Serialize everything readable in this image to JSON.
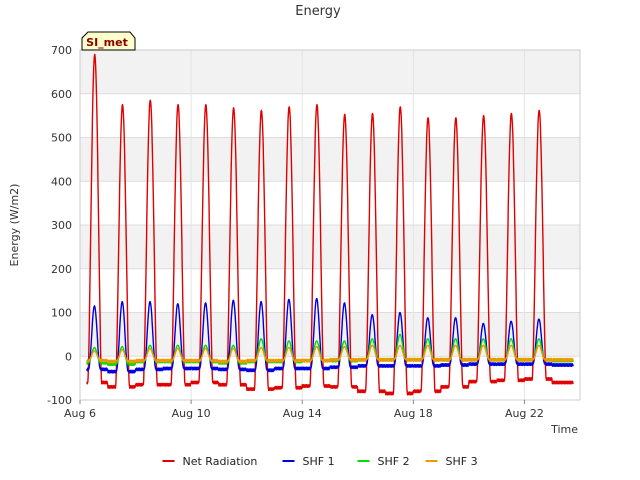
{
  "chart_data": {
    "type": "line",
    "title": "Energy",
    "xlabel": "Time",
    "ylabel": "Energy (W/m2)",
    "badge": "SI_met",
    "ylim": [
      -100,
      700
    ],
    "yticks": [
      -100,
      0,
      100,
      200,
      300,
      400,
      500,
      600,
      700
    ],
    "xlim": [
      "2023-08-06",
      "2023-08-24"
    ],
    "xticks": [
      {
        "date": "2023-08-06",
        "label": "Aug 6"
      },
      {
        "date": "2023-08-10",
        "label": "Aug 10"
      },
      {
        "date": "2023-08-14",
        "label": "Aug 14"
      },
      {
        "date": "2023-08-18",
        "label": "Aug 18"
      },
      {
        "date": "2023-08-22",
        "label": "Aug 22"
      }
    ],
    "grid": true,
    "legend_position": "bottom",
    "series_style": "diurnal",
    "days": [
      "2023-08-06",
      "2023-08-07",
      "2023-08-08",
      "2023-08-09",
      "2023-08-10",
      "2023-08-11",
      "2023-08-12",
      "2023-08-13",
      "2023-08-14",
      "2023-08-15",
      "2023-08-16",
      "2023-08-17",
      "2023-08-18",
      "2023-08-19",
      "2023-08-20",
      "2023-08-21",
      "2023-08-22",
      "2023-08-23"
    ],
    "series": [
      {
        "name": "Net Radiation",
        "color": "#e00000",
        "daily_peak": [
          690,
          575,
          585,
          575,
          575,
          568,
          562,
          570,
          575,
          553,
          555,
          570,
          545,
          545,
          550,
          555,
          562,
          0
        ],
        "night_value": [
          -60,
          -70,
          -65,
          -65,
          -60,
          -65,
          -75,
          -72,
          -68,
          -70,
          -80,
          -85,
          -80,
          -70,
          -58,
          -55,
          -52,
          -60
        ]
      },
      {
        "name": "SHF 1",
        "color": "#0000dd",
        "daily_peak": [
          115,
          125,
          125,
          120,
          122,
          128,
          125,
          130,
          132,
          122,
          95,
          100,
          88,
          88,
          75,
          80,
          85,
          0
        ],
        "night_value": [
          -30,
          -35,
          -30,
          -28,
          -28,
          -30,
          -32,
          -28,
          -28,
          -25,
          -22,
          -22,
          -22,
          -20,
          -18,
          -18,
          -18,
          -20
        ]
      },
      {
        "name": "SHF 2",
        "color": "#00dd00",
        "daily_peak": [
          20,
          22,
          25,
          25,
          25,
          25,
          40,
          35,
          35,
          35,
          40,
          50,
          40,
          40,
          40,
          40,
          40,
          0
        ],
        "night_value": [
          -15,
          -18,
          -12,
          -12,
          -12,
          -15,
          -12,
          -12,
          -10,
          -10,
          -8,
          -8,
          -8,
          -8,
          -8,
          -8,
          -8,
          -10
        ]
      },
      {
        "name": "SHF 3",
        "color": "#ee9900",
        "daily_peak": [
          12,
          15,
          18,
          18,
          18,
          18,
          20,
          20,
          22,
          22,
          25,
          25,
          25,
          25,
          25,
          25,
          25,
          0
        ],
        "night_value": [
          -10,
          -12,
          -10,
          -10,
          -10,
          -12,
          -10,
          -10,
          -10,
          -8,
          -8,
          -8,
          -8,
          -8,
          -8,
          -8,
          -8,
          -8
        ]
      }
    ]
  }
}
